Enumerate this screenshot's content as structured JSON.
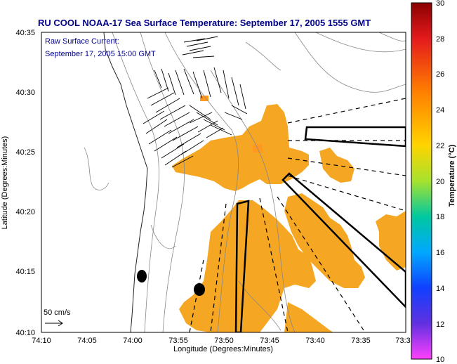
{
  "title": "RU COOL  NOAA-17  Sea Surface Temperature:  September 17, 2005 1555 GMT",
  "current_label_1": "Raw Surface Current:",
  "current_label_2": "September 17, 2005 15:00 GMT",
  "scale_label": "50 cm/s",
  "x_axis_label": "Longitude (Degrees:Minutes)",
  "y_axis_label": "Latitude (Degrees:Minutes)",
  "x_ticks": [
    "74:10",
    "74:05",
    "74:00",
    "73:55",
    "73:50",
    "73:45",
    "73:40",
    "73:35",
    "73:3"
  ],
  "y_ticks": [
    "40:35",
    "40:30",
    "40:25",
    "40:20",
    "40:15",
    "40:10"
  ],
  "colorbar": {
    "label": "Temperature (°C)",
    "ticks": [
      "30",
      "28",
      "26",
      "24",
      "22",
      "20",
      "18",
      "16",
      "14",
      "12",
      "10"
    ],
    "min": 10,
    "max": 30
  },
  "colors": {
    "title": "#00008b",
    "sst_fill": "#f5a623",
    "sst_hot": "#ff9a1f",
    "land": "#ffffff"
  },
  "chart_data": {
    "type": "heatmap",
    "title": "RU COOL  NOAA-17  Sea Surface Temperature:  September 17, 2005 1555 GMT",
    "xlabel": "Longitude (Degrees:Minutes)",
    "ylabel": "Latitude (Degrees:Minutes)",
    "colorbar_range": [
      10,
      30
    ],
    "sst_approx_c": 23.5
  }
}
